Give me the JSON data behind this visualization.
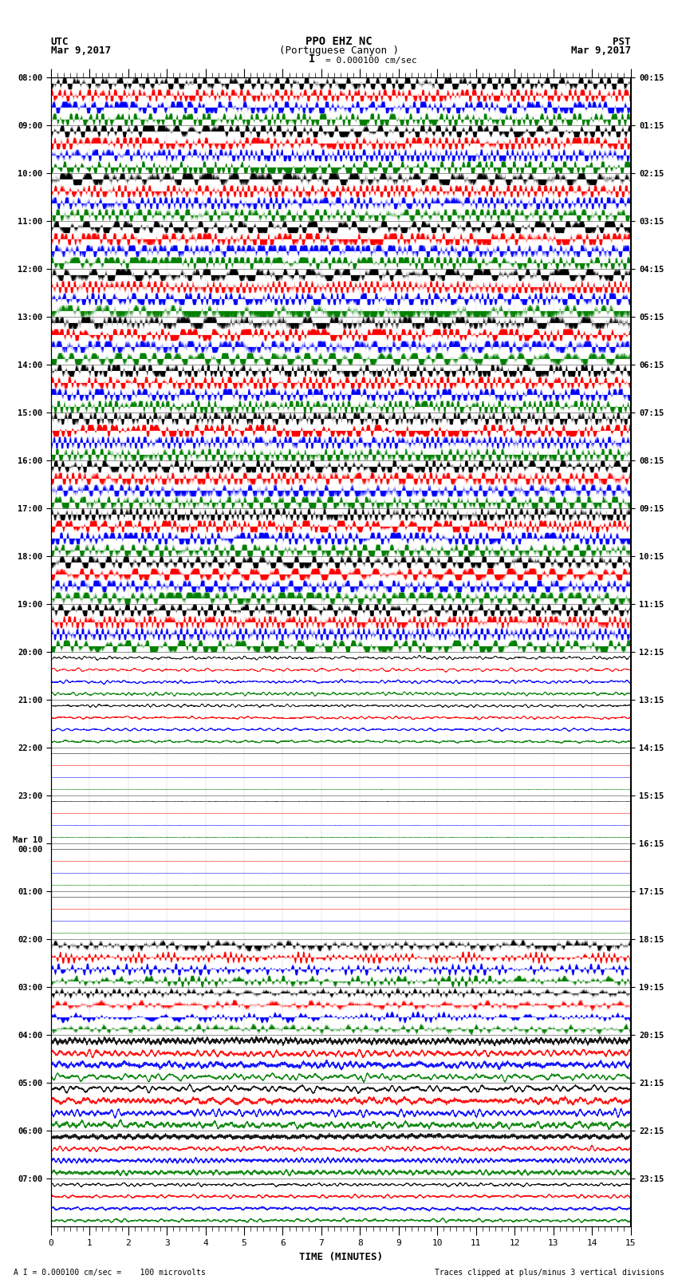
{
  "title_line1": "PPO EHZ NC",
  "title_line2": "(Portuguese Canyon )",
  "title_line3": "I = 0.000100 cm/sec",
  "left_header_line1": "UTC",
  "left_header_line2": "Mar 9,2017",
  "right_header_line1": "PST",
  "right_header_line2": "Mar 9,2017",
  "xlabel": "TIME (MINUTES)",
  "bottom_left_note": "A I = 0.000100 cm/sec =    100 microvolts",
  "bottom_right_note": "Traces clipped at plus/minus 3 vertical divisions",
  "xlim": [
    0,
    15
  ],
  "background_color": "white",
  "figwidth": 8.5,
  "figheight": 16.13,
  "utc_labels": [
    "08:00",
    "09:00",
    "10:00",
    "11:00",
    "12:00",
    "13:00",
    "14:00",
    "15:00",
    "16:00",
    "17:00",
    "18:00",
    "19:00",
    "20:00",
    "21:00",
    "22:00",
    "23:00",
    "Mar 10\n00:00",
    "01:00",
    "02:00",
    "03:00",
    "04:00",
    "05:00",
    "06:00",
    "07:00"
  ],
  "pst_labels": [
    "00:15",
    "01:15",
    "02:15",
    "03:15",
    "04:15",
    "05:15",
    "06:15",
    "07:15",
    "08:15",
    "09:15",
    "10:15",
    "11:15",
    "12:15",
    "13:15",
    "14:15",
    "15:15",
    "16:15",
    "17:15",
    "18:15",
    "19:15",
    "20:15",
    "21:15",
    "22:15",
    "23:15"
  ],
  "trace_colors": [
    "black",
    "red",
    "blue",
    "green"
  ],
  "amplitude_profile": [
    10.0,
    10.0,
    10.0,
    10.0,
    10.0,
    10.0,
    10.0,
    10.0,
    10.0,
    10.0,
    10.0,
    10.0,
    1.2,
    1.0,
    0.15,
    0.15,
    0.15,
    0.08,
    5.0,
    4.0,
    2.5,
    2.5,
    1.8,
    1.2
  ]
}
